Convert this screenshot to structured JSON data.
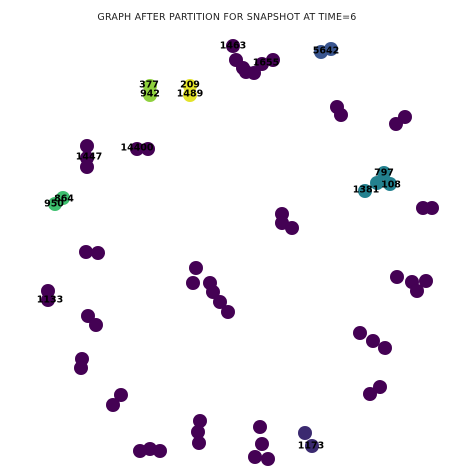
{
  "title": "GRAPH AFTER PARTITION FOR SNAPSHOT AT TIME=6",
  "colors": {
    "purple": "#440154",
    "indigo": "#3b2a70",
    "blue": "#3a5690",
    "teal": "#23818f",
    "green": "#3dbf6e",
    "lime": "#8fd03e",
    "yellow": "#e3e32a"
  },
  "graph": {
    "nodes": [
      {
        "label": "1463",
        "color": "purple"
      },
      {
        "label": "",
        "color": "purple"
      },
      {
        "label": "",
        "color": "purple"
      },
      {
        "label": "1655",
        "color": "purple"
      },
      {
        "label": "",
        "color": "purple"
      },
      {
        "label": "",
        "color": "purple"
      },
      {
        "label": "",
        "color": "purple"
      },
      {
        "label": "5642",
        "color": "blue"
      },
      {
        "label": "",
        "color": "blue"
      },
      {
        "label": "377",
        "color": "lime"
      },
      {
        "label": "942",
        "color": "lime"
      },
      {
        "label": "209",
        "color": "yellow"
      },
      {
        "label": "1489",
        "color": "yellow"
      },
      {
        "label": "",
        "color": "purple"
      },
      {
        "label": "",
        "color": "purple"
      },
      {
        "label": "",
        "color": "purple"
      },
      {
        "label": "",
        "color": "purple"
      },
      {
        "label": "",
        "color": "purple"
      },
      {
        "label": "1447",
        "color": "purple"
      },
      {
        "label": "",
        "color": "purple"
      },
      {
        "label": "14400",
        "color": "purple"
      },
      {
        "label": "",
        "color": "purple"
      },
      {
        "label": "797",
        "color": "teal"
      },
      {
        "label": "",
        "color": "teal"
      },
      {
        "label": "108",
        "color": "teal"
      },
      {
        "label": "1381",
        "color": "teal"
      },
      {
        "label": "864",
        "color": "green"
      },
      {
        "label": "950",
        "color": "green"
      },
      {
        "label": "",
        "color": "purple"
      },
      {
        "label": "",
        "color": "purple"
      },
      {
        "label": "",
        "color": "purple"
      },
      {
        "label": "",
        "color": "purple"
      },
      {
        "label": "",
        "color": "purple"
      },
      {
        "label": "",
        "color": "purple"
      },
      {
        "label": "",
        "color": "purple"
      },
      {
        "label": "",
        "color": "purple"
      },
      {
        "label": "",
        "color": "purple"
      },
      {
        "label": "",
        "color": "purple"
      },
      {
        "label": "",
        "color": "purple"
      },
      {
        "label": "",
        "color": "purple"
      },
      {
        "label": "",
        "color": "purple"
      },
      {
        "label": "",
        "color": "purple"
      },
      {
        "label": "",
        "color": "purple"
      },
      {
        "label": "",
        "color": "purple"
      },
      {
        "label": "",
        "color": "purple"
      },
      {
        "label": "1133",
        "color": "purple"
      },
      {
        "label": "",
        "color": "purple"
      },
      {
        "label": "",
        "color": "purple"
      },
      {
        "label": "",
        "color": "purple"
      },
      {
        "label": "",
        "color": "purple"
      },
      {
        "label": "",
        "color": "purple"
      },
      {
        "label": "",
        "color": "purple"
      },
      {
        "label": "",
        "color": "purple"
      },
      {
        "label": "",
        "color": "purple"
      },
      {
        "label": "",
        "color": "purple"
      },
      {
        "label": "",
        "color": "purple"
      },
      {
        "label": "",
        "color": "purple"
      },
      {
        "label": "",
        "color": "purple"
      },
      {
        "label": "",
        "color": "purple"
      },
      {
        "label": "",
        "color": "purple"
      },
      {
        "label": "1173",
        "color": "indigo"
      },
      {
        "label": "",
        "color": "indigo"
      }
    ]
  }
}
